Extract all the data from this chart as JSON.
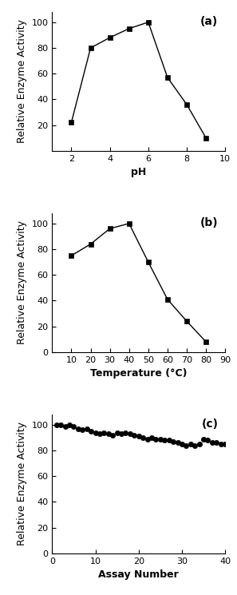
{
  "panel_a": {
    "x": [
      2,
      3,
      4,
      5,
      6,
      7,
      8,
      9
    ],
    "y": [
      22,
      80,
      88,
      95,
      100,
      57,
      36,
      10
    ],
    "xlim": [
      1,
      10
    ],
    "ylim": [
      0,
      108
    ],
    "xticks": [
      2,
      4,
      6,
      8,
      10
    ],
    "yticks": [
      20,
      40,
      60,
      80,
      100
    ],
    "xlabel": "pH",
    "ylabel": "Relative Enzyme Activity",
    "label": "(a)"
  },
  "panel_b": {
    "x": [
      10,
      20,
      30,
      40,
      50,
      60,
      70,
      80
    ],
    "y": [
      75,
      84,
      96,
      100,
      70,
      41,
      24,
      8
    ],
    "xlim": [
      0,
      90
    ],
    "ylim": [
      0,
      108
    ],
    "xticks": [
      10,
      20,
      30,
      40,
      50,
      60,
      70,
      80,
      90
    ],
    "yticks": [
      0,
      20,
      40,
      60,
      80,
      100
    ],
    "xlabel": "Temperature (°C)",
    "ylabel": "Relative Enzyme Activity",
    "label": "(b)"
  },
  "panel_c": {
    "x": [
      1,
      2,
      3,
      4,
      5,
      6,
      7,
      8,
      9,
      10,
      11,
      12,
      13,
      14,
      15,
      16,
      17,
      18,
      19,
      20,
      21,
      22,
      23,
      24,
      25,
      26,
      27,
      28,
      29,
      30,
      31,
      32,
      33,
      34,
      35,
      36,
      37,
      38,
      39,
      40
    ],
    "y": [
      100,
      100,
      99,
      100,
      99,
      97,
      96,
      97,
      95,
      94,
      93,
      94,
      93,
      92,
      94,
      93,
      94,
      93,
      92,
      91,
      90,
      89,
      90,
      89,
      89,
      88,
      88,
      87,
      86,
      85,
      84,
      85,
      84,
      85,
      89,
      88,
      86,
      86,
      85,
      85
    ],
    "xlim": [
      0,
      40
    ],
    "ylim": [
      0,
      108
    ],
    "xticks": [
      0,
      10,
      20,
      30,
      40
    ],
    "yticks": [
      0,
      20,
      40,
      60,
      80,
      100
    ],
    "xlabel": "Assay Number",
    "ylabel": "Relative Enzyme Activity",
    "label": "(c)"
  },
  "marker_ab": "s",
  "marker_c": "o",
  "line_color": "black",
  "marker_color": "black",
  "marker_size_ab": 5,
  "marker_size_c": 4.5,
  "line_width": 1.0,
  "background_color": "#ffffff",
  "tick_label_fontsize": 8,
  "axis_label_fontsize": 9,
  "panel_label_fontsize": 10
}
